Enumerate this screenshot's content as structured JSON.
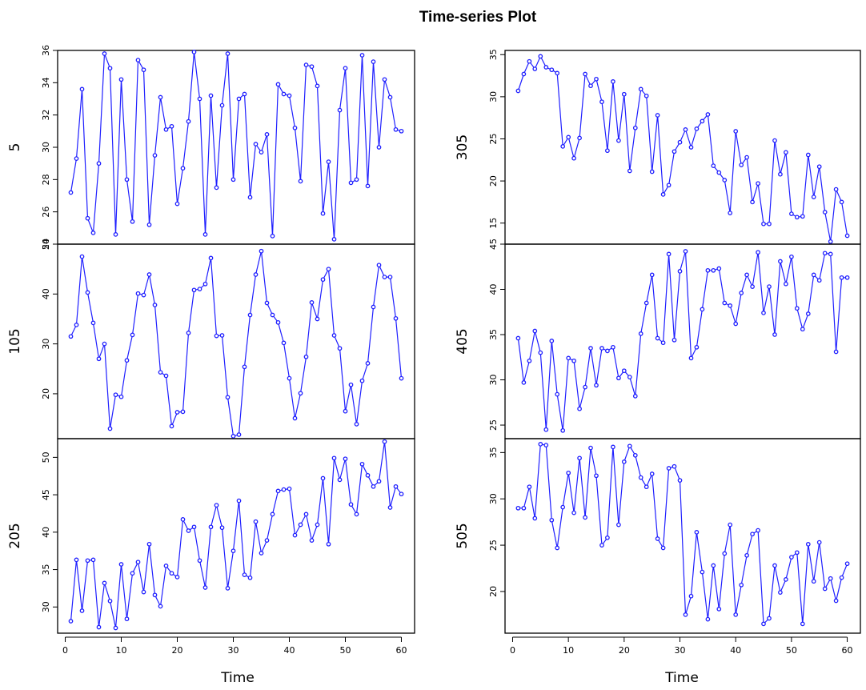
{
  "title": "Time-series Plot",
  "colors": {
    "series": "#1f1fff",
    "axis": "#000000",
    "background": "#ffffff"
  },
  "chart_data": {
    "type": "line",
    "title": "Time-series Plot",
    "xlabel": "Time",
    "markers": "open-circle",
    "xlim": [
      1,
      60
    ],
    "x_ticks": [
      "0",
      "10",
      "20",
      "30",
      "40",
      "50",
      "60"
    ],
    "x_tick_values": [
      0,
      10,
      20,
      30,
      40,
      50,
      60
    ],
    "panels": [
      {
        "ylabel": "5",
        "ylim": [
          24,
          36
        ],
        "y_ticks": [
          "24",
          "26",
          "28",
          "30",
          "32",
          "34",
          "36"
        ],
        "y_tick_values": [
          24,
          26,
          28,
          30,
          32,
          34,
          36
        ],
        "values": [
          27.2,
          29.3,
          33.6,
          25.6,
          24.7,
          29.0,
          35.8,
          34.9,
          24.6,
          34.2,
          28.0,
          25.4,
          35.4,
          34.8,
          25.2,
          29.5,
          33.1,
          31.1,
          31.3,
          26.5,
          28.7,
          31.6,
          35.9,
          33.0,
          24.6,
          33.2,
          27.5,
          32.6,
          35.8,
          28.0,
          33.0,
          33.3,
          26.9,
          30.2,
          29.7,
          30.8,
          24.5,
          33.9,
          33.3,
          33.2,
          31.2,
          27.9,
          35.1,
          35.0,
          33.8,
          25.9,
          29.1,
          24.3,
          32.3,
          34.9,
          27.8,
          28.0,
          35.7,
          27.6,
          35.3,
          30.0,
          34.2,
          33.1,
          31.1,
          31.0
        ]
      },
      {
        "ylabel": "105",
        "ylim": [
          11,
          50
        ],
        "y_ticks": [
          "20",
          "30",
          "40",
          "50"
        ],
        "y_tick_values": [
          20,
          30,
          40,
          50
        ],
        "values": [
          31.5,
          33.8,
          47.5,
          40.3,
          34.2,
          27.0,
          30.0,
          13.0,
          19.8,
          19.4,
          26.7,
          31.8,
          40.1,
          39.8,
          43.9,
          37.8,
          24.3,
          23.6,
          13.5,
          16.3,
          16.4,
          32.2,
          40.8,
          41.0,
          42.0,
          47.2,
          31.6,
          31.7,
          19.3,
          11.5,
          11.8,
          25.4,
          35.8,
          43.9,
          48.6,
          38.2,
          35.8,
          34.3,
          30.2,
          23.1,
          15.1,
          20.1,
          27.4,
          38.3,
          35.0,
          42.9,
          45.0,
          31.7,
          29.1,
          16.5,
          21.8,
          13.9,
          22.6,
          26.1,
          37.4,
          45.8,
          43.4,
          43.4,
          35.1,
          23.1
        ]
      },
      {
        "ylabel": "205",
        "ylim": [
          26.5,
          52.5
        ],
        "y_ticks": [
          "30",
          "35",
          "40",
          "45",
          "50"
        ],
        "y_tick_values": [
          30,
          35,
          40,
          45,
          50
        ],
        "values": [
          28.1,
          36.3,
          29.5,
          36.2,
          36.3,
          27.3,
          33.2,
          30.8,
          27.2,
          35.7,
          28.4,
          34.5,
          36.0,
          32.0,
          38.4,
          31.6,
          30.1,
          35.5,
          34.5,
          34.0,
          41.7,
          40.2,
          40.7,
          36.2,
          32.6,
          40.7,
          43.6,
          40.6,
          32.5,
          37.5,
          44.2,
          34.3,
          33.9,
          41.4,
          37.2,
          38.9,
          42.4,
          45.5,
          45.7,
          45.8,
          39.6,
          41.0,
          42.4,
          38.9,
          41.0,
          47.2,
          38.4,
          49.9,
          47.0,
          49.8,
          43.7,
          42.4,
          49.1,
          47.6,
          46.1,
          46.8,
          52.1,
          43.3,
          46.1,
          45.1
        ]
      },
      {
        "ylabel": "305",
        "ylim": [
          12.5,
          35.5
        ],
        "y_ticks": [
          "15",
          "20",
          "25",
          "30",
          "35"
        ],
        "y_tick_values": [
          15,
          20,
          25,
          30,
          35
        ],
        "values": [
          30.7,
          32.7,
          34.2,
          33.3,
          34.8,
          33.5,
          33.2,
          32.8,
          24.1,
          25.2,
          22.7,
          25.1,
          32.7,
          31.3,
          32.1,
          29.4,
          23.6,
          31.8,
          24.8,
          30.3,
          21.2,
          26.3,
          30.9,
          30.1,
          21.1,
          27.8,
          18.4,
          19.5,
          23.5,
          24.6,
          26.1,
          24.0,
          26.2,
          27.1,
          27.9,
          21.8,
          21.0,
          20.1,
          16.2,
          25.9,
          21.9,
          22.8,
          17.5,
          19.7,
          14.9,
          14.9,
          24.8,
          20.8,
          23.4,
          16.1,
          15.7,
          15.8,
          23.1,
          18.1,
          21.7,
          16.3,
          12.8,
          19.0,
          17.5,
          13.5
        ]
      },
      {
        "ylabel": "405",
        "ylim": [
          23.5,
          45
        ],
        "y_ticks": [
          "25",
          "30",
          "35",
          "40",
          "45"
        ],
        "y_tick_values": [
          25,
          30,
          35,
          40,
          45
        ],
        "values": [
          34.6,
          29.7,
          32.1,
          35.4,
          33.0,
          24.5,
          34.3,
          28.4,
          24.4,
          32.4,
          32.1,
          26.8,
          29.2,
          33.5,
          29.4,
          33.5,
          33.2,
          33.6,
          30.2,
          31.0,
          30.3,
          28.2,
          35.1,
          38.5,
          41.6,
          34.6,
          34.1,
          43.9,
          34.4,
          42.0,
          44.2,
          32.4,
          33.6,
          37.8,
          42.1,
          42.1,
          42.3,
          38.5,
          38.2,
          36.2,
          39.6,
          41.6,
          40.3,
          44.1,
          37.4,
          40.3,
          35.0,
          43.1,
          40.6,
          43.6,
          37.9,
          35.6,
          37.3,
          41.6,
          41.0,
          44.0,
          43.9,
          33.1,
          41.3,
          41.3
        ]
      },
      {
        "ylabel": "505",
        "ylim": [
          15.5,
          36.5
        ],
        "y_ticks": [
          "20",
          "25",
          "30",
          "35"
        ],
        "y_tick_values": [
          20,
          25,
          30,
          35
        ],
        "values": [
          29.0,
          29.0,
          31.3,
          27.9,
          35.9,
          35.8,
          27.7,
          24.7,
          29.1,
          32.8,
          28.5,
          34.4,
          28.0,
          35.5,
          32.5,
          25.0,
          25.8,
          35.6,
          27.2,
          34.0,
          35.7,
          34.7,
          32.3,
          31.3,
          32.7,
          25.7,
          24.7,
          33.3,
          33.5,
          32.0,
          17.5,
          19.5,
          26.4,
          22.1,
          17.0,
          22.8,
          18.1,
          24.1,
          27.2,
          17.5,
          20.7,
          23.9,
          26.2,
          26.6,
          16.5,
          17.1,
          22.8,
          19.9,
          21.3,
          23.7,
          24.2,
          16.5,
          25.1,
          21.1,
          25.3,
          20.3,
          21.4,
          19.0,
          21.5,
          23.0
        ]
      }
    ]
  }
}
